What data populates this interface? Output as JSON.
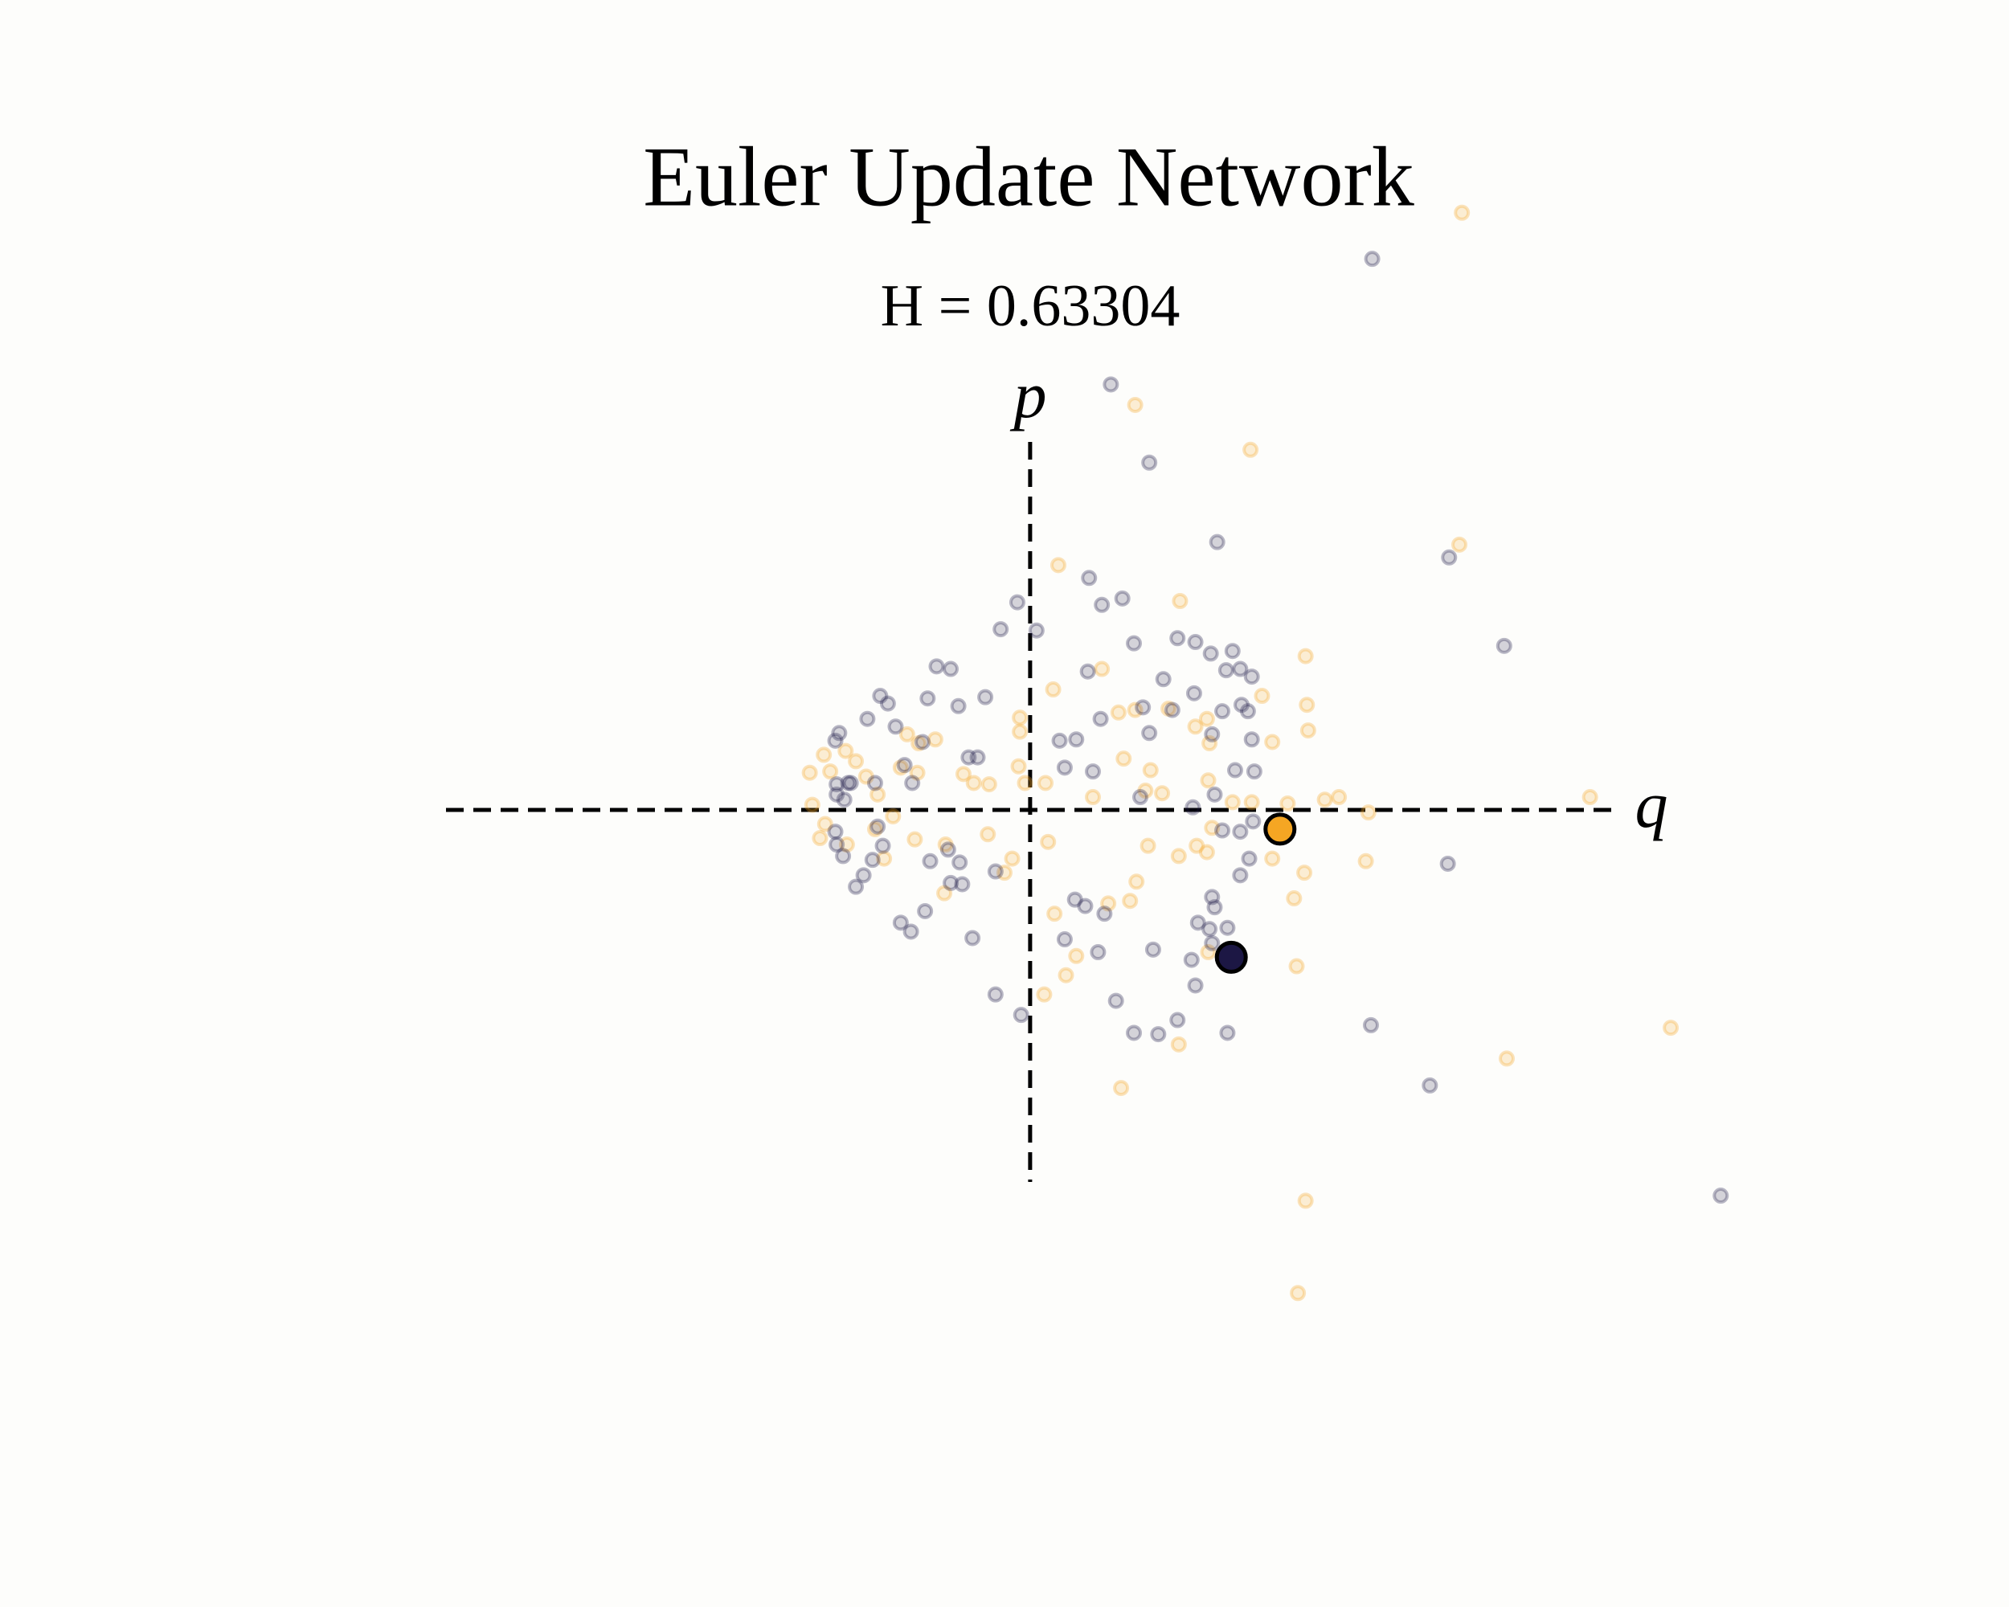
{
  "chart_data": {
    "type": "scatter",
    "title": "Euler Update Network",
    "subtitle": "H = 0.63304",
    "xlabel": "q",
    "ylabel": "p",
    "xlim": [
      -8.04,
      7.64
    ],
    "ylim": [
      -6.22,
      6.32
    ],
    "grid": false,
    "series": [
      {
        "color": "#f5a623",
        "alpha": 0.3,
        "marker_size": 8,
        "x": [
          3.37,
          0.82,
          1.72,
          3.35,
          0.22,
          1.17,
          2.15,
          2.16,
          2.17,
          1.89,
          1.81,
          0.56,
          0.18,
          0.69,
          0.82,
          1.29,
          1.4,
          1.38,
          1.08,
          -0.08,
          -0.08,
          -0.74,
          -0.87,
          -0.96,
          -1.61,
          -1.72,
          -1.56,
          -1.44,
          -1.36,
          -1.28,
          -1.19,
          -1.01,
          -0.88,
          -0.52,
          -0.44,
          -0.32,
          -0.09,
          -0.04,
          0.12,
          0.49,
          0.73,
          0.94,
          0.9,
          1.03,
          1.39,
          1.58,
          1.73,
          2.01,
          2.3,
          2.41,
          2.64,
          4.37,
          -1.7,
          -1.6,
          -1.64,
          -1.43,
          -1.21,
          -1.07,
          -0.9,
          -0.66,
          -0.33,
          -0.14,
          0.14,
          -0.2,
          0.92,
          1.16,
          1.3,
          1.38,
          1.42,
          1.89,
          2.14,
          2.06,
          2.62,
          0.83,
          0.61,
          0.78,
          0.19,
          0.36,
          0.11,
          0.28,
          1.39,
          1.16,
          0.71,
          2.08,
          3.72,
          5.0,
          2.15,
          2.09,
          -1.14,
          -0.67
        ],
        "values": [
          4.66,
          3.16,
          2.81,
          2.07,
          1.91,
          1.63,
          1.2,
          0.82,
          0.62,
          0.53,
          0.89,
          1.1,
          0.94,
          0.76,
          0.78,
          0.65,
          0.52,
          0.71,
          0.79,
          0.72,
          0.61,
          0.55,
          0.52,
          0.59,
          0.43,
          0.29,
          0.3,
          0.46,
          0.38,
          0.26,
          0.12,
          0.33,
          0.29,
          0.28,
          0.21,
          0.2,
          0.34,
          0.21,
          0.21,
          0.1,
          0.4,
          0.31,
          0.15,
          0.13,
          0.23,
          0.06,
          0.06,
          0.05,
          0.08,
          0.1,
          -0.02,
          0.1,
          0.04,
          -0.11,
          -0.22,
          -0.27,
          -0.15,
          -0.05,
          -0.23,
          -0.27,
          -0.19,
          -0.38,
          -0.25,
          -0.49,
          -0.28,
          -0.36,
          -0.28,
          -0.33,
          -0.14,
          -0.38,
          -0.49,
          -0.69,
          -0.4,
          -0.56,
          -0.73,
          -0.71,
          -0.81,
          -1.14,
          -1.44,
          -1.29,
          -1.11,
          -1.83,
          -2.17,
          -1.22,
          -1.94,
          -1.7,
          -3.05,
          -3.77,
          -0.38,
          -0.65
        ]
      },
      {
        "color": "#1c1744",
        "alpha": 0.3,
        "marker_size": 8,
        "x": [
          2.67,
          0.63,
          0.93,
          1.46,
          3.27,
          3.7,
          0.46,
          0.72,
          0.56,
          -0.1,
          -0.23,
          0.05,
          0.81,
          1.15,
          1.29,
          1.58,
          1.41,
          1.64,
          1.53,
          0.45,
          1.04,
          -0.73,
          -0.62,
          1.73,
          1.28,
          1.65,
          1.5,
          1.7,
          1.11,
          0.88,
          0.55,
          -0.56,
          -0.35,
          -0.8,
          -1.17,
          -1.11,
          -1.27,
          -1.05,
          -1.49,
          -1.52,
          -0.84,
          -0.41,
          -0.48,
          0.23,
          0.36,
          1.42,
          0.93,
          1.73,
          -0.98,
          -0.92,
          -1.21,
          -1.42,
          -1.51,
          -1.51,
          -1.4,
          -1.45,
          0.27,
          0.49,
          1.6,
          1.75,
          1.44,
          0.86,
          1.27,
          -1.52,
          -1.51,
          -1.46,
          -1.19,
          -1.15,
          -0.64,
          -0.78,
          -0.55,
          -1.23,
          -0.27,
          -0.62,
          -0.53,
          -1.36,
          -1.3,
          1.64,
          1.5,
          1.74,
          1.71,
          1.64,
          1.42,
          1.44,
          1.31,
          1.4,
          1.54,
          0.35,
          0.43,
          0.58,
          -1.01,
          -0.93,
          -0.82,
          -0.45,
          0.27,
          0.53,
          0.96,
          1.26,
          1.42,
          1.29,
          -0.27,
          -0.07,
          0.67,
          1.15,
          0.81,
          1.0,
          1.54,
          2.66,
          3.26,
          3.12,
          5.39
        ],
        "values": [
          4.3,
          3.32,
          2.71,
          2.09,
          1.97,
          1.28,
          1.81,
          1.65,
          1.6,
          1.62,
          1.41,
          1.4,
          1.3,
          1.34,
          1.31,
          1.24,
          1.22,
          1.1,
          1.09,
          1.08,
          1.02,
          1.12,
          1.1,
          1.04,
          0.91,
          0.82,
          0.77,
          0.77,
          0.78,
          0.8,
          0.71,
          0.81,
          0.88,
          0.87,
          0.89,
          0.83,
          0.71,
          0.65,
          0.6,
          0.54,
          0.53,
          0.41,
          0.41,
          0.54,
          0.55,
          0.59,
          0.6,
          0.55,
          0.35,
          0.21,
          0.21,
          0.21,
          0.2,
          0.12,
          0.21,
          0.08,
          0.33,
          0.3,
          0.31,
          0.3,
          0.12,
          0.1,
          0.02,
          -0.17,
          -0.27,
          -0.36,
          -0.13,
          -0.28,
          -0.31,
          -0.4,
          -0.41,
          -0.39,
          -0.48,
          -0.57,
          -0.58,
          -0.6,
          -0.51,
          -0.17,
          -0.16,
          -0.09,
          -0.38,
          -0.51,
          -0.68,
          -0.76,
          -0.88,
          -0.93,
          -0.92,
          -0.7,
          -0.75,
          -0.81,
          -0.88,
          -0.95,
          -0.79,
          -1.0,
          -1.01,
          -1.11,
          -1.09,
          -1.17,
          -1.04,
          -1.37,
          -1.44,
          -1.6,
          -1.49,
          -1.64,
          -1.74,
          -1.75,
          -1.74,
          -1.68,
          -0.42,
          -2.15,
          -3.01
        ]
      },
      {
        "color": "#f5a623",
        "alpha": 1,
        "marker_size": 18,
        "x": [
          1.95
        ],
        "values": [
          -0.15
        ]
      },
      {
        "color": "#1c1744",
        "alpha": 1,
        "marker_size": 18,
        "x": [
          1.57
        ],
        "values": [
          -1.15
        ]
      }
    ]
  }
}
